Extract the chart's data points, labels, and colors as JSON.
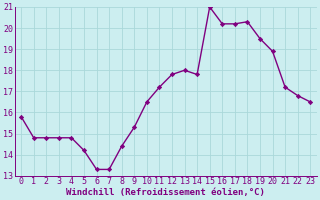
{
  "x": [
    0,
    1,
    2,
    3,
    4,
    5,
    6,
    7,
    8,
    9,
    10,
    11,
    12,
    13,
    14,
    15,
    16,
    17,
    18,
    19,
    20,
    21,
    22,
    23
  ],
  "y": [
    15.8,
    14.8,
    14.8,
    14.8,
    14.8,
    14.2,
    13.3,
    13.3,
    14.4,
    15.3,
    16.5,
    17.2,
    17.8,
    18.0,
    17.8,
    21.0,
    20.2,
    20.2,
    20.3,
    19.5,
    18.9,
    17.2,
    16.8,
    16.5
  ],
  "line_color": "#800080",
  "marker": "D",
  "marker_size": 2.2,
  "bg_color": "#cceef0",
  "grid_color": "#aad8da",
  "xlabel": "Windchill (Refroidissement éolien,°C)",
  "xlim_min": -0.5,
  "xlim_max": 23.5,
  "ylim_min": 13,
  "ylim_max": 21,
  "yticks": [
    13,
    14,
    15,
    16,
    17,
    18,
    19,
    20,
    21
  ],
  "xticks": [
    0,
    1,
    2,
    3,
    4,
    5,
    6,
    7,
    8,
    9,
    10,
    11,
    12,
    13,
    14,
    15,
    16,
    17,
    18,
    19,
    20,
    21,
    22,
    23
  ],
  "xlabel_fontsize": 6.5,
  "tick_fontsize": 6.0,
  "linewidth": 1.0
}
